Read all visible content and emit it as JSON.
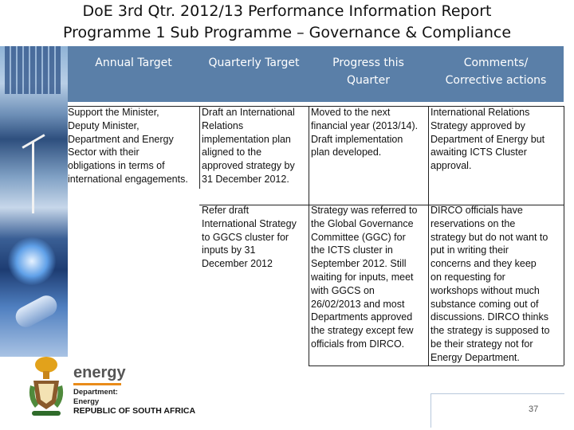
{
  "slide": {
    "title_line1": "DoE 3rd Qtr. 2012/13 Performance Information Report",
    "title_line2": "Programme 1 Sub Programme – Governance & Compliance",
    "page_number": "37"
  },
  "table": {
    "headers": {
      "annual": "Annual Target",
      "quarterly": "Quarterly Target",
      "progress": "Progress this\nQuarter",
      "comments": "Comments/\nCorrective actions"
    },
    "rows": [
      {
        "annual": "Support the Minister,\nDeputy Minister,\nDepartment and Energy\nSector with their\nobligations in terms of\ninternational engagements.",
        "quarterly": "Draft an International\nRelations\nimplementation plan\naligned to the\napproved strategy by\n31 December 2012.",
        "progress": "Moved to the next\nfinancial year (2013/14).\nDraft implementation\nplan developed.",
        "comments": "International Relations\nStrategy approved by\nDepartment of Energy but\nawaiting ICTS Cluster\napproval."
      },
      {
        "annual": "",
        "quarterly": "Refer draft\nInternational Strategy\nto GGCS cluster for\ninputs by 31\nDecember 2012",
        "progress": "Strategy was referred to\nthe Global Governance\nCommittee (GGC) for\nthe ICTS cluster in\nSeptember 2012. Still\nwaiting for inputs, meet\nwith GGCS on\n26/02/2013 and most\nDepartments approved\nthe strategy except few\nofficials from DIRCO.",
        "comments": "DIRCO officials have\nreservations on the\nstrategy but do not want to\nput in writing their\nconcerns and they keep\non requesting for\nworkshops without much\nsubstance coming out of\ndiscussions. DIRCO thinks\nthe strategy is supposed to\nbe their strategy not for\nEnergy Department."
      }
    ]
  },
  "footer": {
    "logo_word": "energy",
    "dept_label": "Department:",
    "dept_name": "Energy",
    "country": "REPUBLIC OF SOUTH AFRICA"
  },
  "colors": {
    "header_bg": "#5a7fa8",
    "accent_orange": "#e98b1a"
  }
}
